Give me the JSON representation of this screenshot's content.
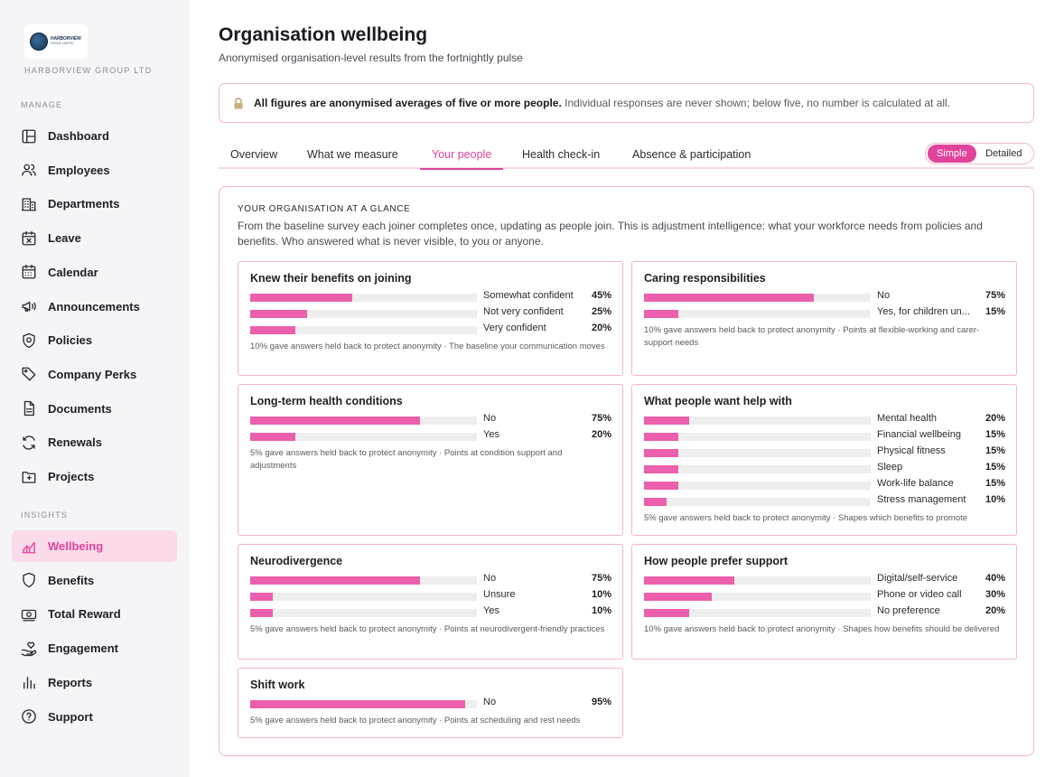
{
  "brand": {
    "logo_text": "HARBORVIEW",
    "logo_sub": "GROUP LIMITED",
    "company": "HARBORVIEW GROUP LTD"
  },
  "sidebar": {
    "manage_label": "MANAGE",
    "insights_label": "INSIGHTS",
    "manage_items": [
      {
        "label": "Dashboard",
        "icon": "dashboard-icon"
      },
      {
        "label": "Employees",
        "icon": "users-icon"
      },
      {
        "label": "Departments",
        "icon": "building-icon"
      },
      {
        "label": "Leave",
        "icon": "calendar-x-icon"
      },
      {
        "label": "Calendar",
        "icon": "calendar-icon"
      },
      {
        "label": "Announcements",
        "icon": "megaphone-icon"
      },
      {
        "label": "Policies",
        "icon": "shield-icon"
      },
      {
        "label": "Company Perks",
        "icon": "tag-icon"
      },
      {
        "label": "Documents",
        "icon": "document-icon"
      },
      {
        "label": "Renewals",
        "icon": "refresh-icon"
      },
      {
        "label": "Projects",
        "icon": "folder-icon"
      }
    ],
    "insights_items": [
      {
        "label": "Wellbeing",
        "icon": "trend-icon",
        "active": true
      },
      {
        "label": "Benefits",
        "icon": "shield-outline-icon"
      },
      {
        "label": "Total Reward",
        "icon": "money-icon"
      },
      {
        "label": "Engagement",
        "icon": "hand-heart-icon"
      },
      {
        "label": "Reports",
        "icon": "bar-chart-icon"
      },
      {
        "label": "Support",
        "icon": "help-icon"
      }
    ]
  },
  "header": {
    "title": "Organisation wellbeing",
    "subtitle": "Anonymised organisation-level results from the fortnightly pulse"
  },
  "notice": {
    "bold": "All figures are anonymised averages of five or more people.",
    "rest": "Individual responses are never shown; below five, no number is calculated at all."
  },
  "tabs": [
    "Overview",
    "What we measure",
    "Your people",
    "Health check-in",
    "Absence & participation"
  ],
  "active_tab": "Your people",
  "view_toggle": {
    "simple": "Simple",
    "detailed": "Detailed",
    "selected": "Simple"
  },
  "panel": {
    "heading": "YOUR ORGANISATION AT A GLANCE",
    "description": "From the baseline survey each joiner completes once, updating as people join. This is adjustment intelligence: what your workforce needs from policies and benefits. Who answered what is never visible, to you or anyone."
  },
  "colors": {
    "accent": "#e0439a",
    "bar": "#ec5fac",
    "border": "#f2b6d2"
  },
  "cards": [
    {
      "title": "Knew their benefits on joining",
      "rows": [
        {
          "label": "Somewhat confident",
          "pct": "45%",
          "value": 45
        },
        {
          "label": "Not very confident",
          "pct": "25%",
          "value": 25
        },
        {
          "label": "Very confident",
          "pct": "20%",
          "value": 20
        }
      ],
      "note": "10% gave answers held back to protect anonymity · The baseline your communication moves"
    },
    {
      "title": "Caring responsibilities",
      "rows": [
        {
          "label": "No",
          "pct": "75%",
          "value": 75
        },
        {
          "label": "Yes, for children un...",
          "pct": "15%",
          "value": 15
        }
      ],
      "note": "10% gave answers held back to protect anonymity · Points at flexible-working and carer-support needs"
    },
    {
      "title": "Long-term health conditions",
      "rows": [
        {
          "label": "No",
          "pct": "75%",
          "value": 75
        },
        {
          "label": "Yes",
          "pct": "20%",
          "value": 20
        }
      ],
      "note": "5% gave answers held back to protect anonymity · Points at condition support and adjustments"
    },
    {
      "title": "What people want help with",
      "rows": [
        {
          "label": "Mental health",
          "pct": "20%",
          "value": 20
        },
        {
          "label": "Financial wellbeing",
          "pct": "15%",
          "value": 15
        },
        {
          "label": "Physical fitness",
          "pct": "15%",
          "value": 15
        },
        {
          "label": "Sleep",
          "pct": "15%",
          "value": 15
        },
        {
          "label": "Work-life balance",
          "pct": "15%",
          "value": 15
        },
        {
          "label": "Stress management",
          "pct": "10%",
          "value": 10
        }
      ],
      "note": "5% gave answers held back to protect anonymity · Shapes which benefits to promote"
    },
    {
      "title": "Neurodivergence",
      "rows": [
        {
          "label": "No",
          "pct": "75%",
          "value": 75
        },
        {
          "label": "Unsure",
          "pct": "10%",
          "value": 10
        },
        {
          "label": "Yes",
          "pct": "10%",
          "value": 10
        }
      ],
      "note": "5% gave answers held back to protect anonymity · Points at neurodivergent-friendly practices"
    },
    {
      "title": "How people prefer support",
      "rows": [
        {
          "label": "Digital/self-service",
          "pct": "40%",
          "value": 40
        },
        {
          "label": "Phone or video call",
          "pct": "30%",
          "value": 30
        },
        {
          "label": "No preference",
          "pct": "20%",
          "value": 20
        }
      ],
      "note": "10% gave answers held back to protect anonymity · Shapes how benefits should be delivered"
    },
    {
      "title": "Shift work",
      "rows": [
        {
          "label": "No",
          "pct": "95%",
          "value": 95
        }
      ],
      "note": "5% gave answers held back to protect anonymity · Points at scheduling and rest needs"
    }
  ]
}
